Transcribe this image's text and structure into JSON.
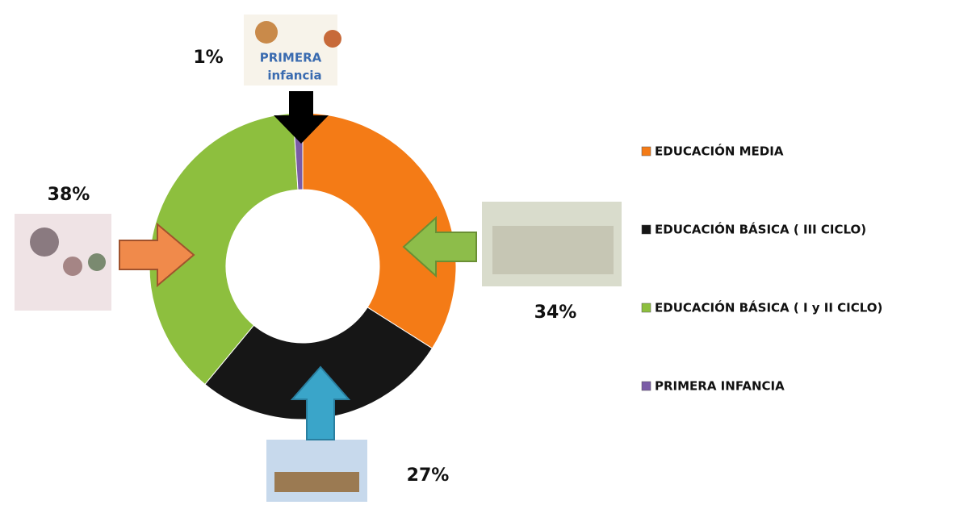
{
  "chart_data": {
    "type": "pie",
    "donut": true,
    "categories": [
      "EDUCACIÓN MEDIA",
      "EDUCACIÓN BÁSICA ( III CICLO)",
      "EDUCACIÓN BÁSICA ( I y II CICLO)",
      "PRIMERA INFANCIA"
    ],
    "values": [
      34,
      27,
      38,
      1
    ],
    "value_labels": [
      "34%",
      "27%",
      "38%",
      "1%"
    ],
    "colors": [
      "#f47b16",
      "#161616",
      "#8dbf3e",
      "#7a5ca6"
    ],
    "legend": "right"
  }
}
